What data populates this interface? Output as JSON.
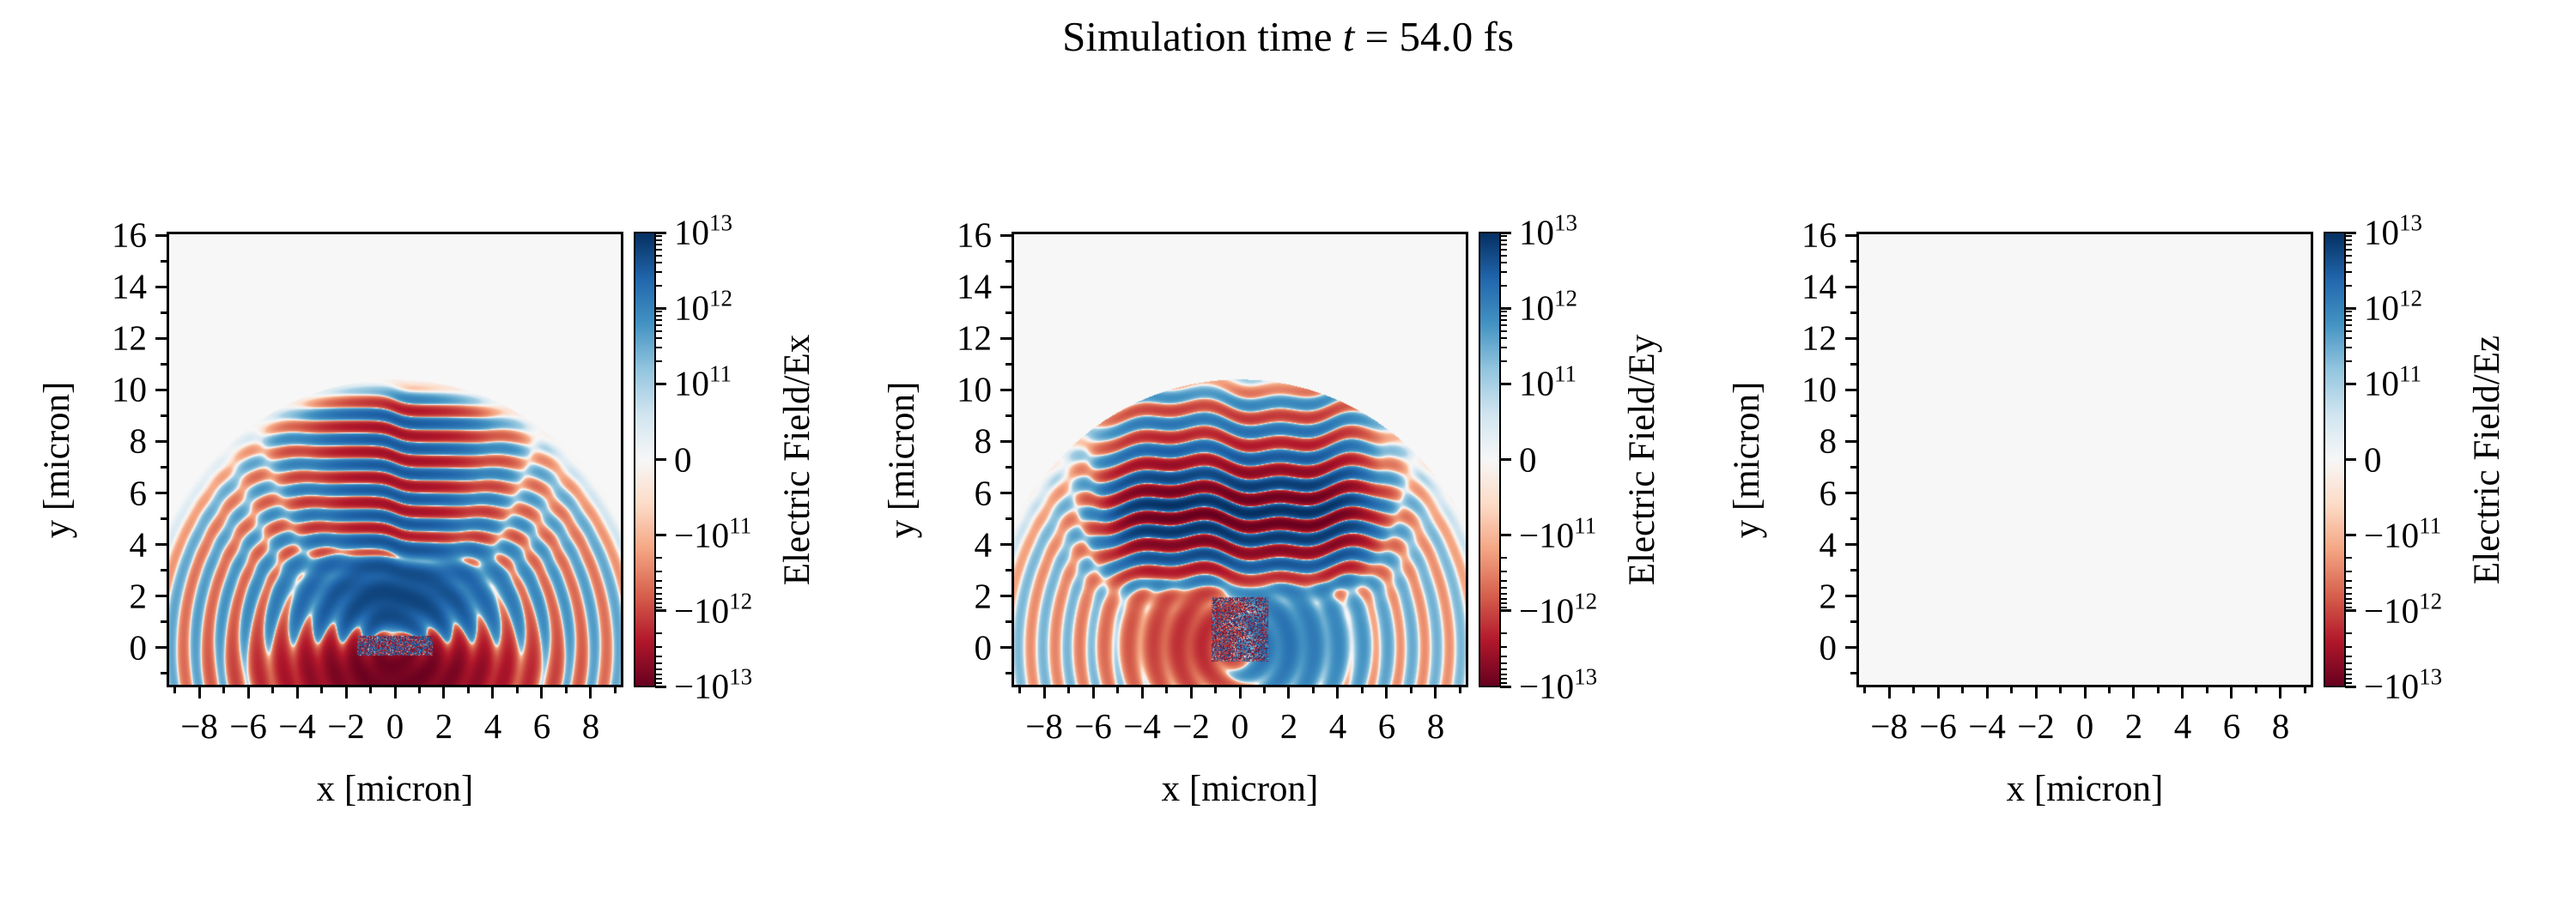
{
  "title": {
    "prefix": "Simulation time ",
    "variable": "t",
    "suffix": " = 54.0 fs"
  },
  "colors": {
    "figure_background": "#ffffff",
    "zero_field": "#f7f7f7",
    "colormap_positive_max": "#053061",
    "colormap_negative_max": "#67001f",
    "spine": "#000000"
  },
  "axes": {
    "xlabel": "x [micron]",
    "ylabel": "y [micron]",
    "xtick_labels": [
      "−8",
      "−6",
      "−4",
      "−2",
      "0",
      "2",
      "4",
      "6",
      "8"
    ],
    "xtick_values": [
      -8,
      -6,
      -4,
      -2,
      0,
      2,
      4,
      6,
      8
    ],
    "xtick_minor_values": [
      -9,
      -7,
      -5,
      -3,
      -1,
      1,
      3,
      5,
      7,
      9
    ],
    "ytick_labels": [
      "16",
      "14",
      "12",
      "10",
      "8",
      "6",
      "4",
      "2",
      "0"
    ],
    "ytick_values": [
      16,
      14,
      12,
      10,
      8,
      6,
      4,
      2,
      0
    ],
    "ytick_minor_values": [
      -1,
      1,
      3,
      5,
      7,
      9,
      11,
      13,
      15
    ],
    "xlim": [
      -9.3,
      9.3
    ],
    "ylim": [
      -1.5,
      16.1
    ]
  },
  "colorbar": {
    "ticks": [
      {
        "sign": "",
        "base": "10",
        "exp": "13",
        "value": 10000000000000.0
      },
      {
        "sign": "",
        "base": "10",
        "exp": "12",
        "value": 1000000000000.0
      },
      {
        "sign": "",
        "base": "10",
        "exp": "11",
        "value": 100000000000.0
      },
      {
        "sign": "",
        "base": "0",
        "exp": "",
        "value": 0
      },
      {
        "sign": "−",
        "base": "10",
        "exp": "11",
        "value": -100000000000.0
      },
      {
        "sign": "−",
        "base": "10",
        "exp": "12",
        "value": -1000000000000.0
      },
      {
        "sign": "−",
        "base": "10",
        "exp": "13",
        "value": -10000000000000.0
      }
    ],
    "minor_decades": [
      12,
      11
    ]
  },
  "panels": [
    {
      "id": "Ex",
      "colorbar_label": "Electric Field/Ex"
    },
    {
      "id": "Ey",
      "colorbar_label": "Electric Field/Ey"
    },
    {
      "id": "Ez",
      "colorbar_label": "Electric Field/Ez"
    }
  ],
  "chart_data": {
    "type": "heatmap",
    "title": "Simulation time t = 54.0 fs",
    "time_fs": 54.0,
    "layout": "three pcolormesh panels side by side, each with its own symlog colorbar on the right",
    "colormap": "RdBu (red = negative, white = zero, blue = positive)",
    "norm": "symlog",
    "linthresh": 100000000000.0,
    "vmin": -10000000000000.0,
    "vmax": 10000000000000.0,
    "colorbar_major_ticks": [
      10000000000000.0,
      1000000000000.0,
      100000000000.0,
      0,
      -100000000000.0,
      -1000000000000.0,
      -10000000000000.0
    ],
    "panels": [
      {
        "field": "Electric Field/Ex",
        "xlabel": "x [micron]",
        "ylabel": "y [micron]",
        "xlim": [
          -9.3,
          9.3
        ],
        "ylim": [
          -1.5,
          16.1
        ],
        "xticks": [
          -8,
          -6,
          -4,
          -2,
          0,
          2,
          4,
          6,
          8
        ],
        "yticks": [
          0,
          2,
          4,
          6,
          8,
          10,
          12,
          14,
          16
        ],
        "description": "Semicircular laser wavefronts (alternating red/blue rings, period ~1 micron) expanding from the origin out to radius ~9.8 micron; strong dark-blue lobe around (0,2); strong dark-red region below y=0 near the origin; horizontal interference stripe segments with a phase seam at x=0 between y~3.5 and y~9.7; speckled white patch at the target surface near (0,0); field zero (light gray) outside radius ~10."
      },
      {
        "field": "Electric Field/Ey",
        "xlabel": "x [micron]",
        "ylabel": "y [micron]",
        "xlim": [
          -9.3,
          9.3
        ],
        "ylim": [
          -1.5,
          16.1
        ],
        "xticks": [
          -8,
          -6,
          -4,
          -2,
          0,
          2,
          4,
          6,
          8
        ],
        "yticks": [
          0,
          2,
          4,
          6,
          8,
          10,
          12,
          14,
          16
        ],
        "description": "Saturated horizontal standing-wave stripes (alternating dark red / dark blue, period ~1 micron) filling |x|<~5, 2.5<y<9.8; antisymmetric lower region with red field at x<0 and blue at x>0; weaker alternating circular arcs out to radius ~9.8; speckled plasma column near (0,0)-(0,1.8); zero elsewhere."
      },
      {
        "field": "Electric Field/Ez",
        "xlabel": "x [micron]",
        "ylabel": "y [micron]",
        "xlim": [
          -9.3,
          9.3
        ],
        "ylim": [
          -1.5,
          16.1
        ],
        "xticks": [
          -8,
          -6,
          -4,
          -2,
          0,
          2,
          4,
          6,
          8
        ],
        "yticks": [
          0,
          2,
          4,
          6,
          8,
          10,
          12,
          14,
          16
        ],
        "description": "Field is zero everywhere: uniform near-white (light gray) panel with the same symlog colorbar."
      }
    ]
  }
}
